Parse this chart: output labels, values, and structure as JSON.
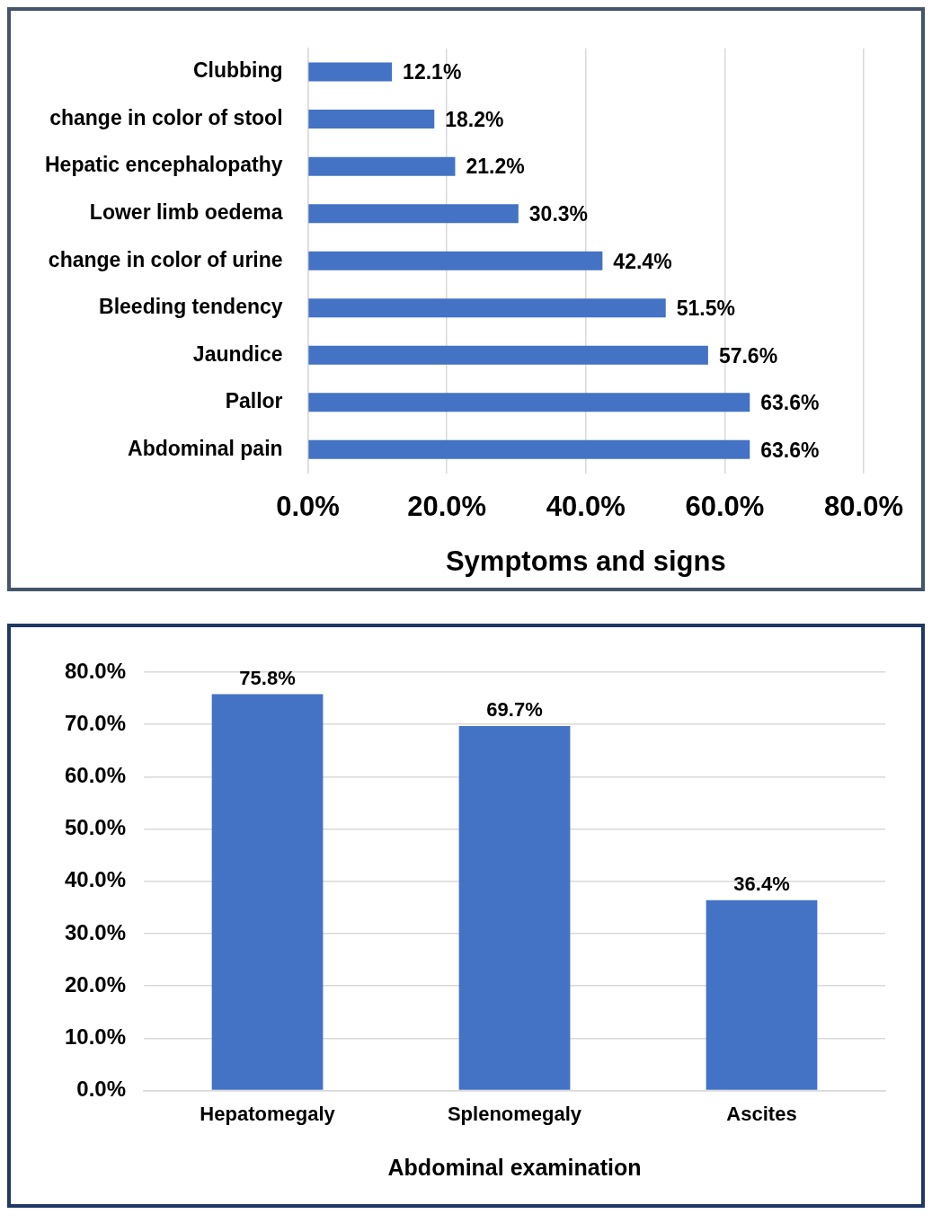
{
  "chart_data": [
    {
      "type": "bar",
      "orientation": "horizontal",
      "xlabel": "Symptoms and signs",
      "categories": [
        "Clubbing",
        "change in color of stool",
        "Hepatic encephalopathy",
        "Lower limb oedema",
        "change in color of urine",
        "Bleeding tendency",
        "Jaundice",
        "Pallor",
        "Abdominal pain"
      ],
      "values": [
        12.1,
        18.2,
        21.2,
        30.3,
        42.4,
        51.5,
        57.6,
        63.6,
        63.6
      ],
      "value_labels": [
        "12.1%",
        "18.2%",
        "21.2%",
        "30.3%",
        "42.4%",
        "51.5%",
        "57.6%",
        "63.6%",
        "63.6%"
      ],
      "color": "#4472c4",
      "xlim": [
        0,
        80
      ],
      "xticks": [
        {
          "value": 0,
          "label": "0.0%"
        },
        {
          "value": 20,
          "label": "20.0%"
        },
        {
          "value": 40,
          "label": "40.0%"
        },
        {
          "value": 60,
          "label": "60.0%"
        },
        {
          "value": 80,
          "label": "80.0%"
        }
      ],
      "grid": "x",
      "legend": false
    },
    {
      "type": "bar",
      "xlabel": "Abdominal examination",
      "categories": [
        "Hepatomegaly",
        "Splenomegaly",
        "Ascites"
      ],
      "values": [
        75.8,
        69.7,
        36.4
      ],
      "value_labels": [
        "75.8%",
        "69.7%",
        "36.4%"
      ],
      "color": "#4472c4",
      "ylim": [
        0,
        80
      ],
      "yticks": [
        {
          "value": 0,
          "label": "0.0%"
        },
        {
          "value": 10,
          "label": "10.0%"
        },
        {
          "value": 20,
          "label": "20.0%"
        },
        {
          "value": 30,
          "label": "30.0%"
        },
        {
          "value": 40,
          "label": "40.0%"
        },
        {
          "value": 50,
          "label": "50.0%"
        },
        {
          "value": 60,
          "label": "60.0%"
        },
        {
          "value": 70,
          "label": "70.0%"
        },
        {
          "value": 80,
          "label": "80.0%"
        }
      ],
      "grid": "y",
      "legend": false
    }
  ]
}
